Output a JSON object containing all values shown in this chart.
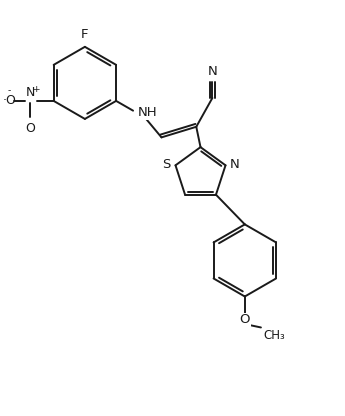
{
  "bg_color": "#ffffff",
  "line_color": "#1a1a1a",
  "line_width": 1.4,
  "font_size": 9.5,
  "figsize": [
    3.45,
    4.16
  ],
  "dpi": 100,
  "xlim": [
    0,
    8
  ],
  "ylim": [
    0,
    9.6
  ]
}
